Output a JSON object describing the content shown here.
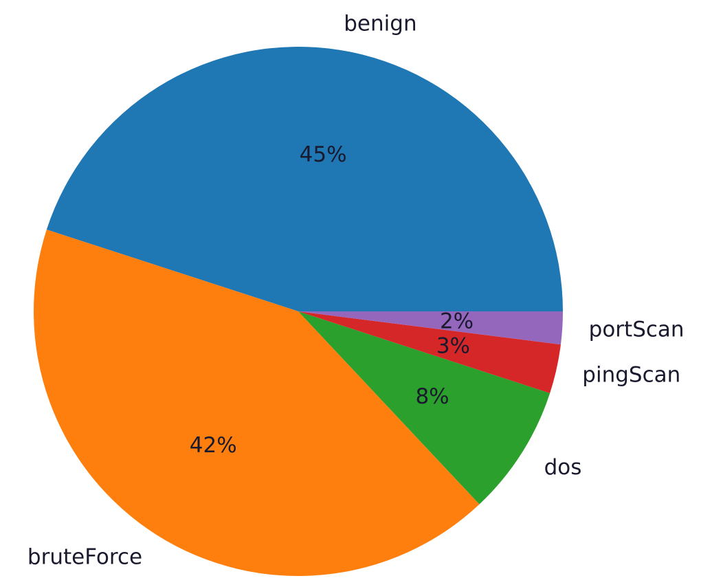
{
  "chart_data": {
    "type": "pie",
    "title": "",
    "start_angle_deg": 0,
    "direction": "counterclockwise",
    "slices": [
      {
        "label": "benign",
        "value": 45,
        "pct_text": "45%",
        "color": "#1f77b4"
      },
      {
        "label": "bruteForce",
        "value": 42,
        "pct_text": "42%",
        "color": "#ff7f0e"
      },
      {
        "label": "dos",
        "value": 8,
        "pct_text": "8%",
        "color": "#2ca02c"
      },
      {
        "label": "pingScan",
        "value": 3,
        "pct_text": "3%",
        "color": "#d62728"
      },
      {
        "label": "portScan",
        "value": 2,
        "pct_text": "2%",
        "color": "#9467bd"
      }
    ]
  }
}
